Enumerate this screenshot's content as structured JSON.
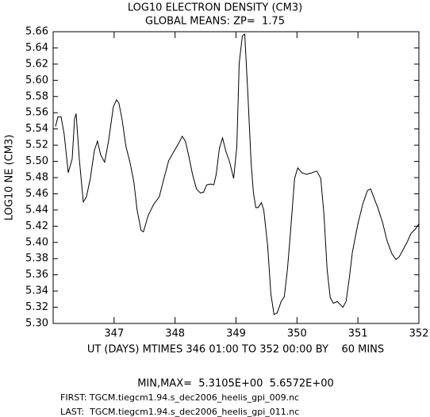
{
  "chart_data": {
    "type": "line",
    "title": "LOG10 ELECTRON DENSITY (CM3)",
    "subtitle": "GLOBAL MEANS: ZP=  1.75",
    "ylabel": "LOG10 NE (CM3)",
    "xlabel": "UT (DAYS) MTIMES 346 01:00 TO 352 00:00 BY    60 MINS",
    "annotations": [
      "MIN,MAX=  5.3105E+00  5.6572E+00",
      "FIRST: TGCM.tiegcm1.94.s_dec2006_heelis_gpi_009.nc",
      "LAST:  TGCM.tiegcm1.94.s_dec2006_heelis_gpi_011.nc"
    ],
    "x": [
      346.039,
      346.078,
      346.13,
      346.182,
      346.247,
      346.312,
      346.351,
      346.377,
      346.429,
      346.494,
      346.545,
      346.61,
      346.675,
      346.727,
      346.779,
      346.844,
      346.909,
      346.987,
      347.039,
      347.078,
      347.13,
      347.195,
      347.26,
      347.325,
      347.377,
      347.442,
      347.481,
      347.558,
      347.649,
      347.74,
      347.818,
      347.896,
      347.987,
      348.065,
      348.117,
      348.169,
      348.221,
      348.286,
      348.351,
      348.416,
      348.468,
      348.519,
      348.584,
      348.636,
      348.675,
      348.727,
      348.779,
      348.831,
      348.896,
      348.961,
      349.013,
      349.052,
      349.104,
      349.143,
      349.195,
      349.247,
      349.286,
      349.325,
      349.364,
      349.416,
      349.455,
      349.519,
      349.571,
      349.623,
      349.675,
      349.74,
      349.792,
      349.844,
      349.896,
      349.961,
      350.013,
      350.078,
      350.156,
      350.247,
      350.325,
      350.39,
      350.442,
      350.494,
      350.545,
      350.597,
      350.662,
      350.701,
      350.753,
      350.805,
      350.857,
      350.909,
      351.0,
      351.078,
      351.156,
      351.208,
      351.273,
      351.325,
      351.403,
      351.481,
      351.558,
      351.623,
      351.675,
      351.74,
      351.805,
      351.87,
      351.948,
      352.0
    ],
    "series": [
      {
        "name": "LOG10 NE",
        "color": "#000000",
        "values": [
          5.543,
          5.555,
          5.555,
          5.533,
          5.486,
          5.503,
          5.552,
          5.559,
          5.503,
          5.45,
          5.456,
          5.479,
          5.513,
          5.525,
          5.508,
          5.499,
          5.525,
          5.567,
          5.576,
          5.572,
          5.552,
          5.518,
          5.499,
          5.474,
          5.44,
          5.415,
          5.413,
          5.433,
          5.447,
          5.456,
          5.479,
          5.501,
          5.513,
          5.523,
          5.531,
          5.525,
          5.508,
          5.484,
          5.466,
          5.461,
          5.462,
          5.471,
          5.472,
          5.471,
          5.484,
          5.516,
          5.529,
          5.513,
          5.499,
          5.479,
          5.518,
          5.621,
          5.655,
          5.657,
          5.582,
          5.499,
          5.461,
          5.443,
          5.443,
          5.449,
          5.44,
          5.396,
          5.337,
          5.311,
          5.313,
          5.327,
          5.333,
          5.367,
          5.415,
          5.479,
          5.492,
          5.486,
          5.484,
          5.486,
          5.488,
          5.479,
          5.435,
          5.367,
          5.332,
          5.325,
          5.327,
          5.324,
          5.32,
          5.327,
          5.355,
          5.388,
          5.423,
          5.447,
          5.464,
          5.466,
          5.453,
          5.443,
          5.425,
          5.401,
          5.386,
          5.379,
          5.382,
          5.391,
          5.4,
          5.411,
          5.417,
          5.423
        ]
      }
    ],
    "xlim": [
      346,
      352
    ],
    "xticks": [
      347,
      348,
      349,
      350,
      351,
      352
    ],
    "ylim": [
      5.3,
      5.66
    ],
    "yticks": [
      {
        "value": 5.3,
        "label": "5.30"
      },
      5.32,
      5.34,
      5.36,
      5.38,
      {
        "value": 5.4,
        "label": "5.40"
      },
      5.42,
      5.44,
      5.46,
      5.48,
      {
        "value": 5.5,
        "label": "5.50"
      },
      5.52,
      5.54,
      5.56,
      5.58,
      {
        "value": 5.6,
        "label": "5.60"
      },
      5.62,
      5.64,
      5.66
    ],
    "grid": false
  }
}
